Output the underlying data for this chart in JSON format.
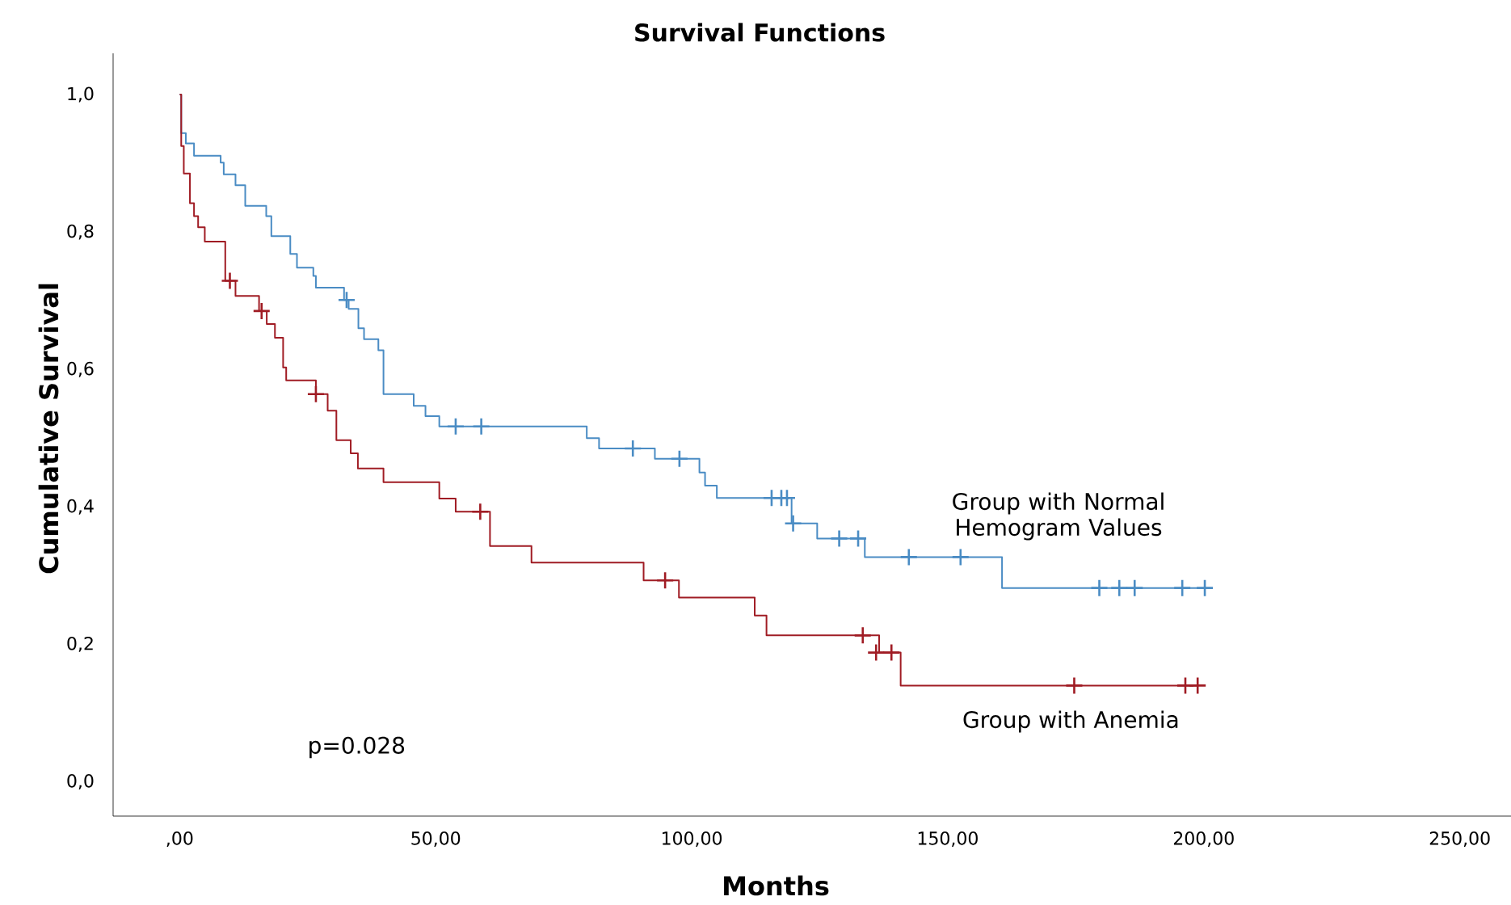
{
  "chart_data": {
    "type": "step",
    "title": "Survival Functions",
    "xlabel": "Months",
    "ylabel": "Cumulative Survival",
    "annotations": [
      "p=0.028"
    ],
    "xlim": [
      -13,
      260
    ],
    "ylim": [
      -0.05,
      1.06
    ],
    "xticks": [
      {
        "value": 0,
        "label": ",00"
      },
      {
        "value": 50,
        "label": "50,00"
      },
      {
        "value": 100,
        "label": "100,00"
      },
      {
        "value": 150,
        "label": "150,00"
      },
      {
        "value": 200,
        "label": "200,00"
      },
      {
        "value": 250,
        "label": "250,00"
      }
    ],
    "yticks": [
      {
        "value": 0,
        "label": "0,0"
      },
      {
        "value": 0.2,
        "label": "0,2"
      },
      {
        "value": 0.4,
        "label": "0,4"
      },
      {
        "value": 0.6,
        "label": "0,6"
      },
      {
        "value": 0.8,
        "label": "0,8"
      },
      {
        "value": 1.0,
        "label": "1,0"
      }
    ],
    "grid": false,
    "series": [
      {
        "name": "Group with Normal Hemogram Values",
        "marker": "none",
        "color": "#4a8cc4",
        "x": [
          0,
          0.3,
          1.2,
          2.8,
          8.0,
          8.6,
          10.9,
          12.8,
          16.9,
          17.9,
          21.6,
          22.9,
          26.1,
          26.6,
          32.1,
          33.0,
          34.9,
          36.0,
          38.8,
          39.8,
          45.7,
          48.0,
          50.7,
          79.5,
          81.9,
          92.8,
          101.5,
          102.6,
          104.9,
          119.5,
          124.5,
          133.8,
          160.6,
          201.3
        ],
        "values": [
          1.0,
          0.944,
          0.929,
          0.911,
          0.901,
          0.884,
          0.868,
          0.838,
          0.823,
          0.794,
          0.768,
          0.748,
          0.736,
          0.719,
          0.701,
          0.688,
          0.66,
          0.644,
          0.628,
          0.564,
          0.547,
          0.532,
          0.517,
          0.5,
          0.485,
          0.47,
          0.45,
          0.431,
          0.413,
          0.376,
          0.354,
          0.327,
          0.282,
          0.282
        ]
      },
      {
        "name": "Group with Anemia",
        "marker": "none",
        "color": "#a01c24",
        "x": [
          0,
          0.3,
          0.8,
          2.0,
          2.8,
          3.6,
          4.9,
          8.9,
          10.9,
          15.5,
          17.0,
          18.6,
          20.2,
          20.8,
          26.6,
          28.9,
          30.6,
          33.4,
          34.8,
          39.8,
          50.7,
          53.9,
          60.6,
          68.7,
          90.6,
          97.5,
          112.3,
          114.6,
          136.6,
          140.8,
          198.9
        ],
        "values": [
          1.0,
          0.925,
          0.885,
          0.842,
          0.823,
          0.807,
          0.786,
          0.729,
          0.707,
          0.685,
          0.666,
          0.646,
          0.603,
          0.584,
          0.564,
          0.54,
          0.497,
          0.478,
          0.456,
          0.436,
          0.412,
          0.393,
          0.343,
          0.319,
          0.293,
          0.268,
          0.242,
          0.213,
          0.188,
          0.14,
          0.14
        ]
      },
      {
        "type": "scatter",
        "marker": "cross",
        "color": "#4a8cc4",
        "x": [
          32.6,
          53.9,
          58.9,
          88.5,
          97.6,
          115.6,
          117.5,
          118.6,
          119.8,
          128.8,
          132.5,
          142.4,
          152.5,
          179.6,
          183.5,
          186.5,
          195.8,
          200.2
        ],
        "values": [
          0.701,
          0.517,
          0.517,
          0.485,
          0.47,
          0.413,
          0.413,
          0.413,
          0.376,
          0.354,
          0.354,
          0.327,
          0.327,
          0.282,
          0.282,
          0.282,
          0.282,
          0.282
        ]
      },
      {
        "type": "scatter",
        "marker": "cross",
        "color": "#a01c24",
        "x": [
          9.8,
          16.0,
          26.6,
          58.7,
          94.8,
          133.4,
          136.0,
          139.0,
          174.7,
          196.4,
          198.8
        ],
        "values": [
          0.729,
          0.685,
          0.564,
          0.393,
          0.293,
          0.213,
          0.188,
          0.188,
          0.14,
          0.14,
          0.14
        ]
      }
    ]
  }
}
